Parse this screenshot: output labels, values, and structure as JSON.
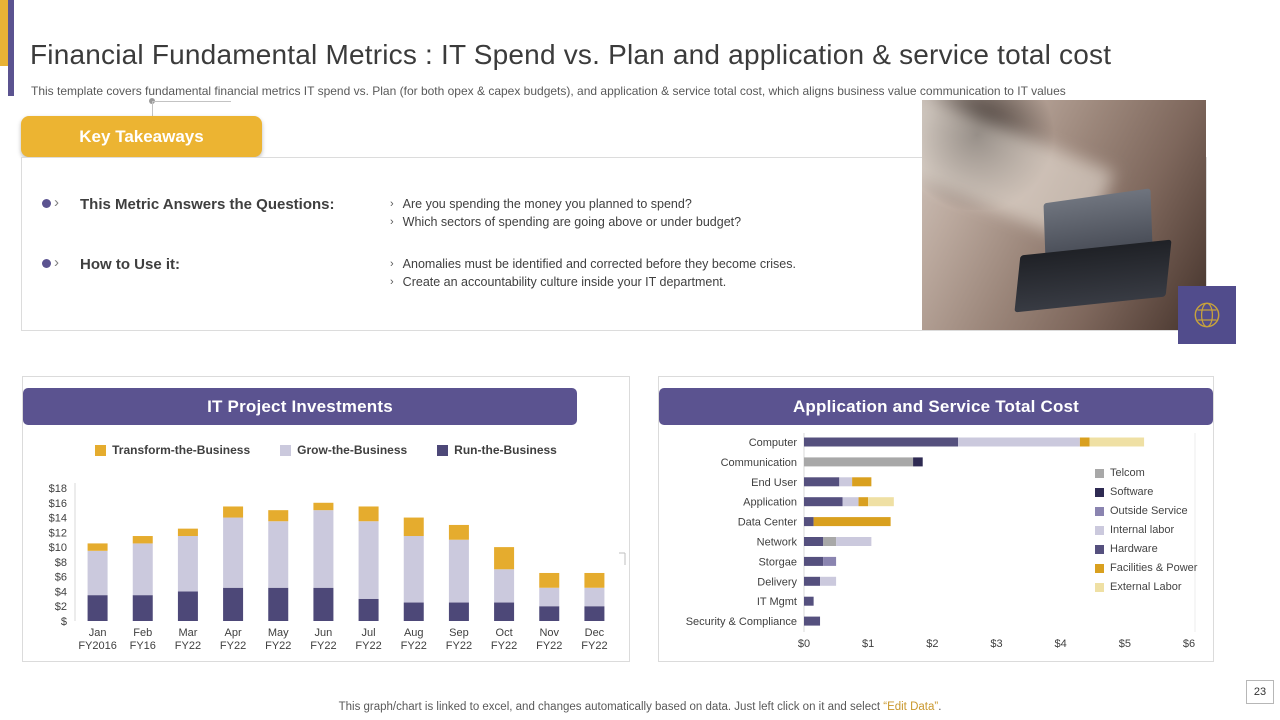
{
  "slide": {
    "title": "Financial Fundamental Metrics : IT Spend vs. Plan and application & service total cost",
    "subtitle": "This template covers fundamental financial metrics IT spend vs. Plan (for both opex & capex budgets), and application & service total cost, which aligns business value communication to IT values",
    "footer": {
      "prefix": "This graph/chart is linked to excel, and changes automatically based on data. Just left click on it and select ",
      "edit_label": "“Edit Data”",
      "suffix": "."
    },
    "page_number": "23"
  },
  "ui": {
    "chevron": "›"
  },
  "theme": {
    "accent_gold": "#E9B235",
    "accent_purple": "#5B5390"
  },
  "icons": {
    "globe": "globe-icon"
  },
  "takeaways": {
    "button_label": "Key Takeaways",
    "rows": [
      {
        "label": "This Metric Answers the Questions:",
        "points": [
          "Are you spending the money you planned to spend?",
          "Which sectors of spending are going above or under budget?"
        ]
      },
      {
        "label": "How to Use it:",
        "points": [
          "Anomalies must be identified and corrected before they become crises.",
          "Create an accountability culture inside your IT department."
        ]
      }
    ]
  },
  "chart_data": [
    {
      "type": "bar",
      "stacked": true,
      "orientation": "vertical",
      "title": "IT Project Investments",
      "categories": [
        "Jan FY2016",
        "Feb FY16",
        "Mar FY22",
        "Apr FY22",
        "May FY22",
        "Jun FY22",
        "Jul FY22",
        "Aug FY22",
        "Sep FY22",
        "Oct FY22",
        "Nov FY22",
        "Dec FY22"
      ],
      "category_lines": [
        [
          "Jan",
          "FY2016"
        ],
        [
          "Feb",
          "FY16"
        ],
        [
          "Mar",
          "FY22"
        ],
        [
          "Apr",
          "FY22"
        ],
        [
          "May",
          "FY22"
        ],
        [
          "Jun",
          "FY22"
        ],
        [
          "Jul",
          "FY22"
        ],
        [
          "Aug",
          "FY22"
        ],
        [
          "Sep",
          "FY22"
        ],
        [
          "Oct",
          "FY22"
        ],
        [
          "Nov",
          "FY22"
        ],
        [
          "Dec",
          "FY22"
        ]
      ],
      "series": [
        {
          "name": "Transform-the-Business",
          "color": "#E5AC2E",
          "values": [
            1,
            1,
            1,
            1.5,
            1.5,
            1,
            2,
            2.5,
            2,
            3,
            2,
            2
          ]
        },
        {
          "name": "Grow-the-Business",
          "color": "#CBC9DD",
          "values": [
            6,
            7,
            7.5,
            9.5,
            9,
            10.5,
            10.5,
            9,
            8.5,
            4.5,
            2.5,
            2.5
          ]
        },
        {
          "name": "Run-the-Business",
          "color": "#4D4878",
          "values": [
            3.5,
            3.5,
            4,
            4.5,
            4.5,
            4.5,
            3,
            2.5,
            2.5,
            2.5,
            2,
            2
          ]
        }
      ],
      "stack_order": [
        "Run-the-Business",
        "Grow-the-Business",
        "Transform-the-Business"
      ],
      "ylim": [
        0,
        18
      ],
      "yticks": [
        "$",
        "$2",
        "$4",
        "$6",
        "$8",
        "$10",
        "$12",
        "$14",
        "$16",
        "$18"
      ],
      "grid": false,
      "legend_position": "top"
    },
    {
      "type": "bar",
      "stacked": true,
      "orientation": "horizontal",
      "title": "Application and Service Total Cost",
      "categories": [
        "Computer",
        "Communication",
        "End User",
        "Application",
        "Data Center",
        "Network",
        "Storgae",
        "Delivery",
        "IT Mgmt",
        "Security & Compliance"
      ],
      "series": [
        {
          "name": "Telcom",
          "color": "#A8A8A8",
          "values": [
            0,
            1.7,
            0,
            0,
            0,
            0.2,
            0,
            0,
            0,
            0
          ]
        },
        {
          "name": "Software",
          "color": "#2E2A52",
          "values": [
            0,
            0.15,
            0,
            0,
            0,
            0,
            0,
            0,
            0,
            0
          ]
        },
        {
          "name": "Outside Service",
          "color": "#8A84B0",
          "values": [
            0,
            0,
            0,
            0,
            0,
            0,
            0.2,
            0,
            0,
            0
          ]
        },
        {
          "name": "Internal labor",
          "color": "#CBC9DD",
          "values": [
            1.9,
            0,
            0.2,
            0.25,
            0,
            0.55,
            0,
            0.25,
            0,
            0
          ]
        },
        {
          "name": "Hardware",
          "color": "#55507E",
          "values": [
            2.4,
            0,
            0.55,
            0.6,
            0.15,
            0.3,
            0.3,
            0.25,
            0.15,
            0.25
          ]
        },
        {
          "name": "Facilities & Power",
          "color": "#D9A01F",
          "values": [
            0.15,
            0,
            0.3,
            0.15,
            1.2,
            0,
            0,
            0,
            0,
            0
          ]
        },
        {
          "name": "External Labor",
          "color": "#EFE0A4",
          "values": [
            0.85,
            0,
            0,
            0.4,
            0,
            0,
            0,
            0,
            0,
            0
          ]
        }
      ],
      "stack_order": [
        "Hardware",
        "Telcom",
        "Software",
        "Outside Service",
        "Internal labor",
        "Facilities & Power",
        "External Labor"
      ],
      "xlim": [
        0,
        6
      ],
      "xticks": [
        "$0",
        "$1",
        "$2",
        "$3",
        "$4",
        "$5",
        "$6"
      ],
      "grid": false,
      "legend_position": "right"
    }
  ]
}
